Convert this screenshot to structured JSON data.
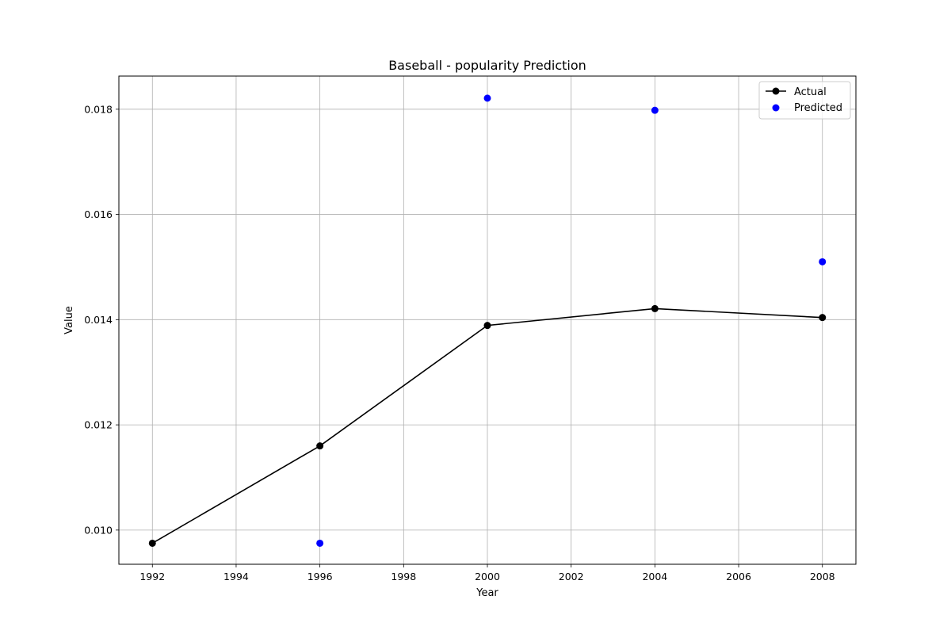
{
  "chart_data": {
    "type": "line",
    "title": "Baseball - popularity Prediction",
    "xlabel": "Year",
    "ylabel": "Value",
    "xlim": [
      1991.2,
      2008.8
    ],
    "ylim": [
      0.00935,
      0.01863
    ],
    "xticks": [
      1992,
      1994,
      1996,
      1998,
      2000,
      2002,
      2004,
      2006,
      2008
    ],
    "xtick_labels": [
      "1992",
      "1994",
      "1996",
      "1998",
      "2000",
      "2002",
      "2004",
      "2006",
      "2008"
    ],
    "yticks": [
      0.01,
      0.012,
      0.014,
      0.016,
      0.018
    ],
    "ytick_labels": [
      "0.010",
      "0.012",
      "0.014",
      "0.016",
      "0.018"
    ],
    "grid": true,
    "legend_position": "top-right",
    "series": [
      {
        "name": "Actual",
        "kind": "line-with-markers",
        "color": "#000000",
        "x": [
          1992,
          1996,
          2000,
          2004,
          2008
        ],
        "y": [
          0.00975,
          0.0116,
          0.01389,
          0.01421,
          0.01404
        ]
      },
      {
        "name": "Predicted",
        "kind": "scatter",
        "color": "#0000ff",
        "x": [
          1996,
          2000,
          2004,
          2008
        ],
        "y": [
          0.00975,
          0.01821,
          0.01798,
          0.0151
        ]
      }
    ]
  }
}
